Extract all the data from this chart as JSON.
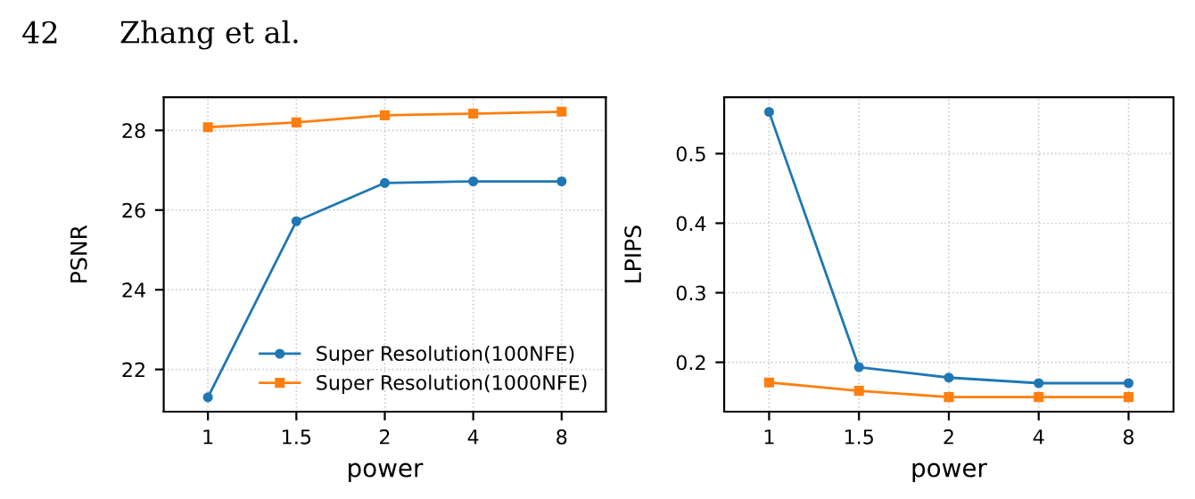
{
  "chart_data": [
    {
      "type": "line",
      "annotations": [
        "42",
        "Zhang et al."
      ],
      "categories": [
        "1",
        "1.5",
        "2",
        "4",
        "8"
      ],
      "xlabel": "power",
      "ylabel": "PSNR",
      "ylim": [
        20.94,
        28.83
      ],
      "yticks": [
        22,
        24,
        26,
        28
      ],
      "grid": true,
      "legend": "bottom right",
      "series": [
        {
          "name": "Super Resolution(100NFE)",
          "color": "#1f77b4",
          "marker": "circle",
          "values": [
            21.3,
            25.72,
            26.68,
            26.72,
            26.72
          ]
        },
        {
          "name": "Super Resolution(1000NFE)",
          "color": "#ff7f0e",
          "marker": "square",
          "values": [
            28.08,
            28.2,
            28.38,
            28.42,
            28.47
          ]
        }
      ]
    },
    {
      "type": "line",
      "categories": [
        "1",
        "1.5",
        "2",
        "4",
        "8"
      ],
      "xlabel": "power",
      "ylabel": "LPIPS",
      "ylim": [
        0.129,
        0.581
      ],
      "yticks": [
        0.2,
        0.3,
        0.4,
        0.5
      ],
      "grid": true,
      "series": [
        {
          "color": "#1f77b4",
          "marker": "circle",
          "values": [
            0.56,
            0.193,
            0.178,
            0.17,
            0.17
          ]
        },
        {
          "color": "#ff7f0e",
          "marker": "square",
          "values": [
            0.171,
            0.159,
            0.15,
            0.15,
            0.15
          ]
        }
      ]
    }
  ]
}
